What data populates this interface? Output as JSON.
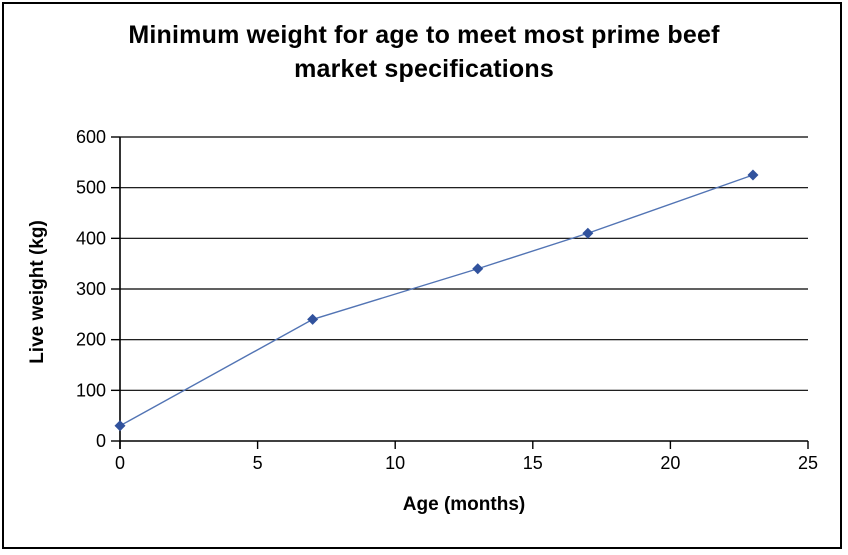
{
  "window": {
    "background": "#ffffff",
    "border_color": "#000000"
  },
  "chart_data": {
    "type": "line",
    "title": "Minimum weight for age to meet most prime beef market specifications",
    "title_lines": [
      "Minimum weight for age to meet most prime beef",
      "market specifications"
    ],
    "xlabel": "Age (months)",
    "ylabel": "Live weight (kg)",
    "x": [
      0,
      7,
      13,
      17,
      23
    ],
    "y": [
      30,
      240,
      340,
      410,
      525
    ],
    "xlim": [
      0,
      25
    ],
    "ylim": [
      0,
      600
    ],
    "x_ticks": [
      0,
      5,
      10,
      15,
      20,
      25
    ],
    "y_ticks": [
      0,
      100,
      200,
      300,
      400,
      500,
      600
    ],
    "grid": "horizontal-only",
    "legend": "none",
    "marker": "diamond",
    "line_color": "#5274b4",
    "marker_color": "#31529d",
    "axis_color": "#000000",
    "gridline_color": "#000000",
    "text_color": "#000000"
  }
}
